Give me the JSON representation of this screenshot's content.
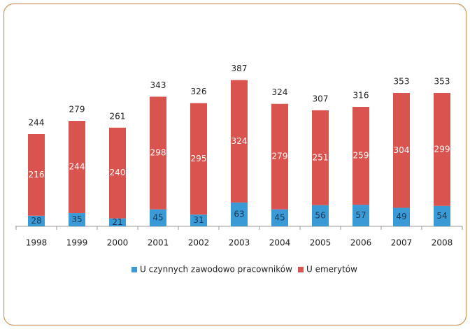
{
  "chart_data": {
    "type": "bar",
    "stacked": true,
    "categories": [
      "1998",
      "1999",
      "2000",
      "2001",
      "2002",
      "2003",
      "2004",
      "2005",
      "2006",
      "2007",
      "2008"
    ],
    "series": [
      {
        "name": "U czynnych zawodowo pracowników",
        "color": "#3a9ad6",
        "values": [
          28,
          35,
          21,
          45,
          31,
          63,
          45,
          56,
          57,
          49,
          54
        ]
      },
      {
        "name": "U emerytów",
        "color": "#d9534f",
        "values": [
          216,
          244,
          240,
          298,
          295,
          324,
          279,
          251,
          259,
          304,
          299
        ]
      }
    ],
    "totals": [
      244,
      279,
      261,
      343,
      326,
      387,
      324,
      307,
      316,
      353,
      353
    ]
  }
}
